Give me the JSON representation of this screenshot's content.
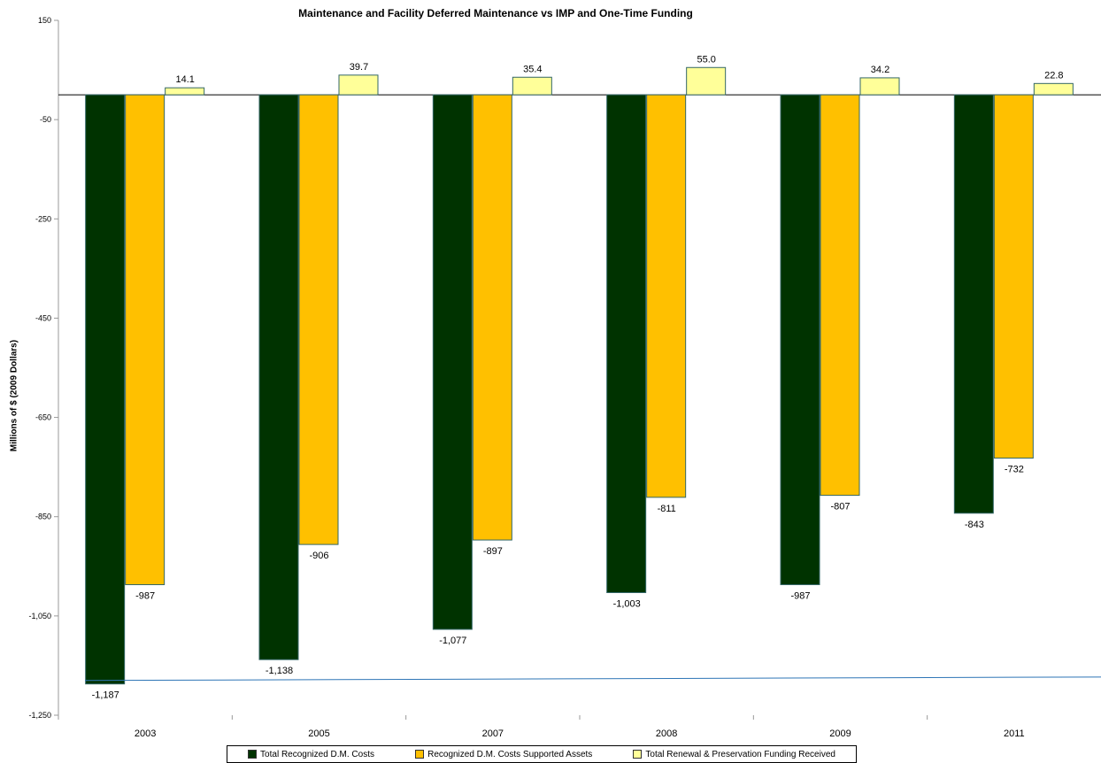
{
  "chart_data": {
    "type": "bar",
    "title": "Maintenance and Facility Deferred Maintenance vs IMP and One-Time Funding",
    "ylabel": "Millions of $ (2009 Dollars)",
    "xlabel": "",
    "ylim": [
      -1250,
      150
    ],
    "yticks": [
      "150",
      "-50",
      "-250",
      "-450",
      "-650",
      "-850",
      "-1,050",
      "-1,250"
    ],
    "ytick_values": [
      150,
      -50,
      -250,
      -450,
      -650,
      -850,
      -1050,
      -1250
    ],
    "categories": [
      "2003",
      "2005",
      "2007",
      "2008",
      "2009",
      "2011"
    ],
    "series": [
      {
        "name": "Total Recognized D.M. Costs",
        "color": "#003300",
        "values": [
          -1187,
          -1138,
          -1077,
          -1003,
          -987,
          -843
        ],
        "labels": [
          "-1,187",
          "-1,138",
          "-1,077",
          "-1,003",
          "-987",
          "-843"
        ]
      },
      {
        "name": "Recognized D.M. Costs Supported Assets",
        "color": "#FFC000",
        "values": [
          -987,
          -906,
          -897,
          -811,
          -807,
          -732
        ],
        "labels": [
          "-987",
          "-906",
          "-897",
          "-811",
          "-807",
          "-732"
        ]
      },
      {
        "name": "Total Renewal & Preservation Funding Received",
        "color": "#FFFF99",
        "values": [
          14.1,
          39.7,
          35.4,
          55.0,
          34.2,
          22.8
        ],
        "labels": [
          "14.1",
          "39.7",
          "35.4",
          "55.0",
          "34.2",
          "22.8"
        ]
      }
    ],
    "trend_line": {
      "color": "#2E75B6",
      "from": -1180,
      "to": -1173
    },
    "legend_position": "bottom",
    "grid": false
  }
}
